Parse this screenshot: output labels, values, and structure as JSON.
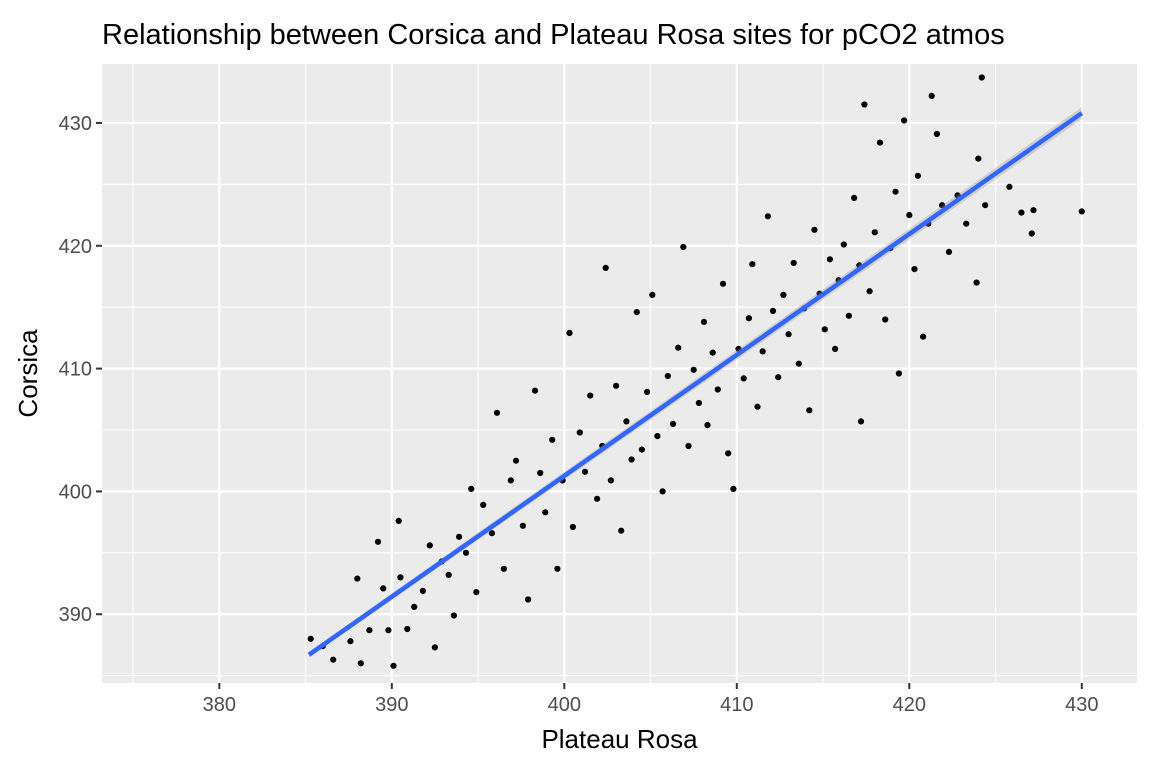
{
  "chart_data": {
    "type": "scatter",
    "title": "Relationship between Corsica and Plateau Rosa sites for pCO2 atmos",
    "xlabel": "Plateau Rosa",
    "ylabel": "Corsica",
    "xlim": [
      373.2,
      433.2
    ],
    "ylim": [
      384.4,
      434.8
    ],
    "xticks": [
      380,
      390,
      400,
      410,
      420,
      430
    ],
    "yticks": [
      390,
      400,
      410,
      420,
      430
    ],
    "xtick_labels": [
      "380",
      "390",
      "400",
      "410",
      "420",
      "430"
    ],
    "ytick_labels": [
      "390",
      "400",
      "410",
      "420",
      "430"
    ],
    "grid": true,
    "legend": "none",
    "colors": {
      "panel_background": "#ebebeb",
      "grid": "#ffffff",
      "points": "#000000",
      "fit_line": "#3366ff",
      "confidence_band": "#999999"
    },
    "trend_line": {
      "method": "linear",
      "x": [
        385.2,
        430.0
      ],
      "y": [
        386.7,
        430.8
      ]
    },
    "series": [
      {
        "points": [
          [
            385.3,
            388.0
          ],
          [
            386.0,
            387.4
          ],
          [
            386.6,
            386.3
          ],
          [
            387.6,
            387.8
          ],
          [
            388.2,
            386.0
          ],
          [
            388.0,
            392.9
          ],
          [
            388.7,
            388.7
          ],
          [
            389.2,
            395.9
          ],
          [
            389.5,
            392.1
          ],
          [
            389.8,
            388.7
          ],
          [
            390.1,
            385.8
          ],
          [
            390.4,
            397.6
          ],
          [
            390.5,
            393.0
          ],
          [
            390.9,
            388.8
          ],
          [
            391.3,
            390.6
          ],
          [
            391.8,
            391.9
          ],
          [
            392.2,
            395.6
          ],
          [
            392.5,
            387.3
          ],
          [
            392.9,
            394.3
          ],
          [
            393.3,
            393.2
          ],
          [
            393.6,
            389.9
          ],
          [
            393.9,
            396.3
          ],
          [
            394.3,
            395.0
          ],
          [
            394.6,
            400.2
          ],
          [
            394.9,
            391.8
          ],
          [
            395.3,
            398.9
          ],
          [
            395.8,
            396.6
          ],
          [
            396.1,
            406.4
          ],
          [
            396.5,
            393.7
          ],
          [
            396.9,
            400.9
          ],
          [
            397.2,
            402.5
          ],
          [
            397.6,
            397.2
          ],
          [
            397.9,
            391.2
          ],
          [
            398.3,
            408.2
          ],
          [
            398.6,
            401.5
          ],
          [
            398.9,
            398.3
          ],
          [
            399.3,
            404.2
          ],
          [
            399.6,
            393.7
          ],
          [
            399.9,
            400.9
          ],
          [
            400.3,
            412.9
          ],
          [
            400.5,
            397.1
          ],
          [
            400.9,
            404.8
          ],
          [
            401.2,
            401.6
          ],
          [
            401.5,
            407.8
          ],
          [
            401.9,
            399.4
          ],
          [
            402.2,
            403.7
          ],
          [
            402.4,
            418.2
          ],
          [
            402.7,
            400.9
          ],
          [
            403.0,
            408.6
          ],
          [
            403.3,
            396.8
          ],
          [
            403.6,
            405.7
          ],
          [
            403.9,
            402.6
          ],
          [
            404.2,
            414.6
          ],
          [
            404.5,
            403.4
          ],
          [
            404.8,
            408.1
          ],
          [
            405.1,
            416.0
          ],
          [
            405.4,
            404.5
          ],
          [
            405.7,
            400.0
          ],
          [
            406.0,
            409.4
          ],
          [
            406.3,
            405.5
          ],
          [
            406.6,
            411.7
          ],
          [
            406.9,
            419.9
          ],
          [
            407.2,
            403.7
          ],
          [
            407.5,
            409.9
          ],
          [
            407.8,
            407.2
          ],
          [
            408.1,
            413.8
          ],
          [
            408.3,
            405.4
          ],
          [
            408.6,
            411.3
          ],
          [
            408.9,
            408.3
          ],
          [
            409.2,
            416.9
          ],
          [
            409.5,
            403.1
          ],
          [
            409.8,
            400.2
          ],
          [
            410.1,
            411.6
          ],
          [
            410.4,
            409.2
          ],
          [
            410.7,
            414.1
          ],
          [
            410.9,
            418.5
          ],
          [
            411.2,
            406.9
          ],
          [
            411.5,
            411.4
          ],
          [
            411.8,
            422.4
          ],
          [
            412.1,
            414.7
          ],
          [
            412.4,
            409.3
          ],
          [
            412.7,
            416.0
          ],
          [
            413.0,
            412.8
          ],
          [
            413.3,
            418.6
          ],
          [
            413.6,
            410.4
          ],
          [
            413.9,
            414.9
          ],
          [
            414.2,
            406.6
          ],
          [
            414.5,
            421.3
          ],
          [
            414.8,
            416.1
          ],
          [
            415.1,
            413.2
          ],
          [
            415.4,
            418.9
          ],
          [
            415.7,
            411.6
          ],
          [
            415.9,
            417.2
          ],
          [
            416.2,
            420.1
          ],
          [
            416.5,
            414.3
          ],
          [
            416.8,
            423.9
          ],
          [
            417.1,
            418.4
          ],
          [
            417.2,
            405.7
          ],
          [
            417.4,
            431.5
          ],
          [
            417.7,
            416.3
          ],
          [
            418.0,
            421.1
          ],
          [
            418.3,
            428.4
          ],
          [
            418.6,
            414.0
          ],
          [
            418.9,
            419.8
          ],
          [
            419.2,
            424.4
          ],
          [
            419.4,
            409.6
          ],
          [
            419.7,
            430.2
          ],
          [
            420.0,
            422.5
          ],
          [
            420.3,
            418.1
          ],
          [
            420.5,
            425.7
          ],
          [
            420.8,
            412.6
          ],
          [
            421.1,
            421.8
          ],
          [
            421.3,
            432.2
          ],
          [
            421.6,
            429.1
          ],
          [
            421.9,
            423.3
          ],
          [
            422.3,
            419.5
          ],
          [
            422.8,
            424.1
          ],
          [
            423.3,
            421.8
          ],
          [
            423.9,
            417.0
          ],
          [
            424.0,
            427.1
          ],
          [
            424.2,
            433.7
          ],
          [
            424.4,
            423.3
          ],
          [
            425.8,
            424.8
          ],
          [
            426.5,
            422.7
          ],
          [
            427.1,
            421.0
          ],
          [
            427.2,
            422.9
          ],
          [
            430.0,
            422.8
          ]
        ]
      }
    ]
  }
}
